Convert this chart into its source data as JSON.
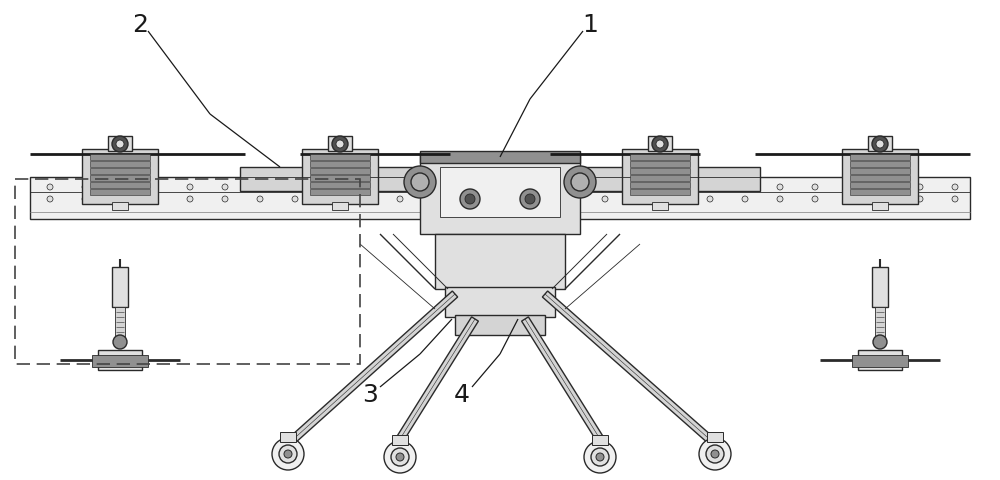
{
  "bg_color": "#ffffff",
  "line_color": "#2a2a2a",
  "dark_line": "#1a1a1a",
  "gray_fill": "#b0b0b0",
  "light_gray": "#e0e0e0",
  "light_gray2": "#d4d4d4",
  "mid_gray": "#909090",
  "dark_gray": "#505050",
  "very_light": "#f0f0f0",
  "dashed_color": "#444444",
  "figsize": [
    10.0,
    4.81
  ],
  "dpi": 100
}
